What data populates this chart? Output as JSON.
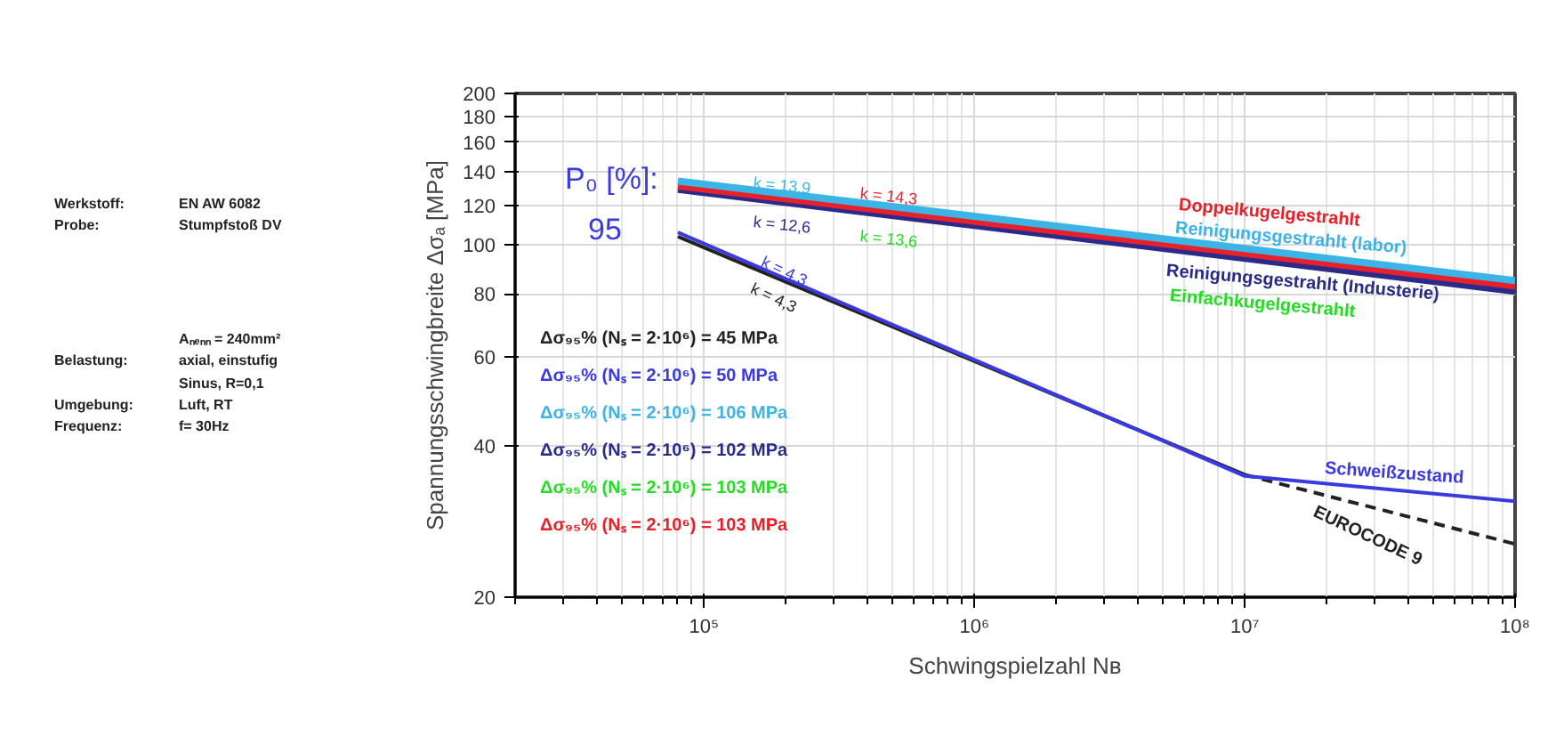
{
  "chart_data": {
    "type": "line",
    "xlabel": "Schwingspielzahl Nʙ",
    "ylabel": "Spannungsschwingbreite Δσₐ [MPa]",
    "log": "xy",
    "grid": true,
    "line_style": "solid",
    "marker": "none",
    "xlim": [
      20000,
      100000000
    ],
    "ylim": [
      20,
      200
    ],
    "xticks": [
      {
        "value": 100000,
        "label": "10⁵"
      },
      {
        "value": 1000000,
        "label": "10⁶"
      },
      {
        "value": 10000000,
        "label": "10⁷"
      },
      {
        "value": 100000000,
        "label": "10⁸"
      }
    ],
    "yticks": [
      20,
      40,
      60,
      80,
      100,
      120,
      140,
      160,
      180,
      200
    ],
    "series": [
      {
        "name": "Einfachkugelgestrahlt",
        "color": "#22dd22"
      },
      {
        "name": "Reinigungsgestrahlt (Industerie)",
        "color": "#2a2a8a",
        "x": [
          80000,
          100000000
        ],
        "values": [
          129,
          81
        ]
      },
      {
        "name": "Doppelkugelgestrahlt",
        "color": "#e8202a",
        "x": [
          80000,
          100000000
        ],
        "values": [
          131,
          83
        ]
      },
      {
        "name": "Reinigungsgestrahlt (labor)",
        "color": "#3cb4e6",
        "x": [
          80000,
          100000000
        ],
        "values": [
          134,
          85
        ]
      },
      {
        "color": "#222222",
        "x": [
          80000,
          10000000
        ],
        "values": [
          104,
          35
        ]
      },
      {
        "name": "EUROCODE 9",
        "color": "#222222",
        "line_style": "dashed",
        "x": [
          10000000,
          100000000
        ],
        "values": [
          35,
          25.5
        ]
      },
      {
        "name": "Schweißzustand",
        "color": "#3a3ae0",
        "x": [
          80000,
          10000000,
          100000000
        ],
        "values": [
          106,
          34.8,
          31
        ]
      }
    ],
    "annotations": [
      "Werkstoff:",
      "EN AW 6082",
      "Probe:",
      "Stumpfstoß DV",
      "Aₙₑₙₙ = 240mm²",
      "Belastung:",
      "axial, einstufig",
      "Sinus, R=0,1",
      "Umgebung:",
      "Luft, RT",
      "Frequenz:",
      "f= 30Hz",
      "P₀ [%]:",
      "95",
      "Δσ₉₅% (Nₛ = 2·10⁶) = 45 MPa",
      "Δσ₉₅% (Nₛ = 2·10⁶) = 50 MPa",
      "Δσ₉₅% (Nₛ = 2·10⁶) = 106 MPa",
      "Δσ₉₅% (Nₛ = 2·10⁶) = 102 MPa",
      "Δσ₉₅% (Nₛ = 2·10⁶) = 103 MPa",
      "Δσ₉₅% (Nₛ = 2·10⁶) = 103 MPa",
      "k = 13,9",
      "k = 14,3",
      "k = 12,6",
      "k = 13,6",
      "k = 4,3",
      "k = 4,3"
    ]
  }
}
